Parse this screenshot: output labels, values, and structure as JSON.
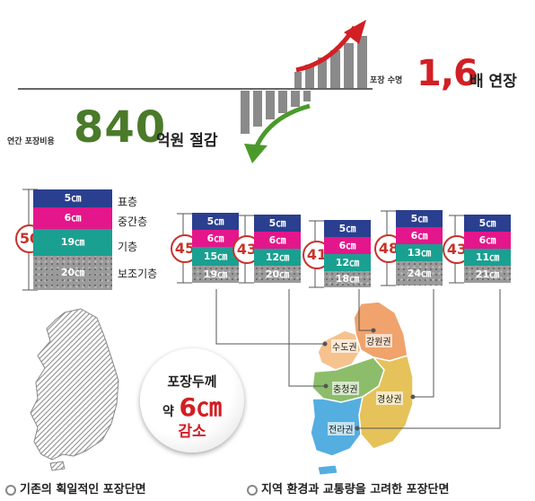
{
  "header": {
    "extend_label": "포장 수명",
    "extend_value": "1,6",
    "extend_unit": "배 연장",
    "save_label": "연간 포장비용",
    "save_value": "840",
    "save_unit": "억원 절감"
  },
  "existing": {
    "total": "50",
    "layers": [
      {
        "thickness": "5㎝",
        "name": "표층"
      },
      {
        "thickness": "6㎝",
        "name": "중간층"
      },
      {
        "thickness": "19㎝",
        "name": "기층"
      },
      {
        "thickness": "20㎝",
        "name": "보조기층"
      }
    ],
    "caption": "기존의 획일적인 포장단면"
  },
  "regional": [
    {
      "total": "45",
      "layers": [
        "5㎝",
        "6㎝",
        "15㎝",
        "19㎝"
      ]
    },
    {
      "total": "43",
      "layers": [
        "5㎝",
        "6㎝",
        "12㎝",
        "20㎝"
      ]
    },
    {
      "total": "41",
      "layers": [
        "5㎝",
        "6㎝",
        "12㎝",
        "18㎝"
      ]
    },
    {
      "total": "48",
      "layers": [
        "5㎝",
        "6㎝",
        "13㎝",
        "24㎝"
      ]
    },
    {
      "total": "43",
      "layers": [
        "5㎝",
        "6㎝",
        "11㎝",
        "21㎝"
      ]
    }
  ],
  "regions": {
    "gangwon": "강원권",
    "sudo": "수도권",
    "chungcheong": "충청권",
    "gyeongsang": "경상권",
    "jeolla": "전라권"
  },
  "regional_caption": "지역 환경과 교통량을 고려한 포장단면",
  "badge": {
    "line1": "포장두께",
    "prefix": "약",
    "value": "6㎝",
    "line3": "감소"
  },
  "colors": {
    "surface": "#2a3f8f",
    "intermediate": "#e4168b",
    "base": "#1aa091",
    "subbase": "#9a9a9a",
    "accent": "#d21f24",
    "savings": "#4a7a2a"
  }
}
